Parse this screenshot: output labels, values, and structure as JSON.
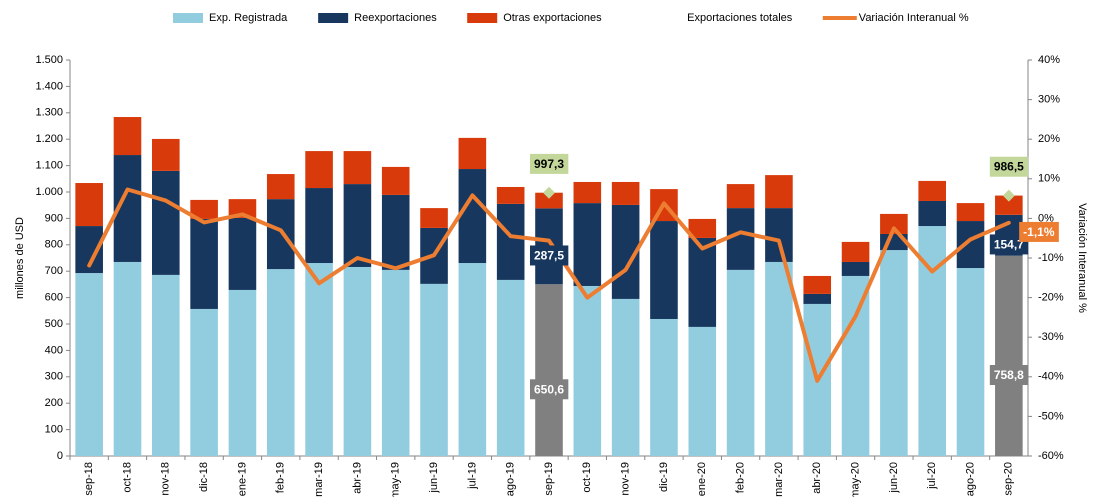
{
  "chart_data": {
    "type": "bar",
    "stacked": true,
    "y_label": "millones de USD",
    "y2_label": "Variación Interanual %",
    "categories": [
      "sep-18",
      "oct-18",
      "nov-18",
      "dic-18",
      "ene-19",
      "feb-19",
      "mar-19",
      "abr-19",
      "may-19",
      "jun-19",
      "jul-19",
      "ago-19",
      "sep-19",
      "oct-19",
      "nov-19",
      "dic-19",
      "ene-20",
      "feb-20",
      "mar-20",
      "abr-20",
      "may-20",
      "jun-20",
      "jul-20",
      "ago-20",
      "sep-20"
    ],
    "series": [
      {
        "name": "Exp. Registrada",
        "type": "bar",
        "color": "#92cddf",
        "colors": [
          "#92cddf",
          "#92cddf",
          "#92cddf",
          "#92cddf",
          "#92cddf",
          "#92cddf",
          "#92cddf",
          "#92cddf",
          "#92cddf",
          "#92cddf",
          "#92cddf",
          "#92cddf",
          "#808080",
          "#92cddf",
          "#92cddf",
          "#92cddf",
          "#92cddf",
          "#92cddf",
          "#92cddf",
          "#92cddf",
          "#92cddf",
          "#92cddf",
          "#92cddf",
          "#92cddf",
          "#808080"
        ],
        "values": [
          693,
          735,
          686,
          557,
          629,
          708,
          731,
          716,
          705,
          652,
          731,
          667,
          650.6,
          644,
          595,
          519,
          489,
          705,
          735,
          576,
          682,
          780,
          871,
          712,
          758.8
        ],
        "value_labels": [
          null,
          null,
          null,
          null,
          null,
          null,
          null,
          null,
          null,
          null,
          null,
          null,
          "650,6",
          null,
          null,
          null,
          null,
          null,
          null,
          null,
          null,
          null,
          null,
          null,
          "758,8"
        ],
        "label_box": "#808080",
        "label_text": "#ffffff"
      },
      {
        "name": "Reexportaciones",
        "type": "bar",
        "color": "#17375e",
        "values": [
          178,
          405,
          394,
          341,
          273,
          265,
          284,
          314,
          284,
          212,
          356,
          288,
          287.5,
          314,
          356,
          371,
          337,
          234,
          204,
          38,
          53,
          61,
          95,
          178,
          154.7
        ],
        "value_labels": [
          null,
          null,
          null,
          null,
          null,
          null,
          null,
          null,
          null,
          null,
          null,
          null,
          "287,5",
          null,
          null,
          null,
          null,
          null,
          null,
          null,
          null,
          null,
          null,
          null,
          "154,7"
        ],
        "label_box": "#17375e",
        "label_text": "#ffffff"
      },
      {
        "name": "Otras exportaciones",
        "type": "bar",
        "color": "#d83a0b",
        "values": [
          163,
          144,
          121,
          72,
          71,
          95,
          140,
          125,
          106,
          75,
          118,
          64,
          59.2,
          80,
          87,
          121,
          72,
          91,
          125,
          68,
          76,
          76,
          76,
          68,
          73
        ]
      },
      {
        "name": "Exportaciones  totales",
        "type": "marker",
        "color": "#c4d79b",
        "values": [
          null,
          null,
          null,
          null,
          null,
          null,
          null,
          null,
          null,
          null,
          null,
          null,
          997.3,
          null,
          null,
          null,
          null,
          null,
          null,
          null,
          null,
          null,
          null,
          null,
          986.5
        ],
        "value_labels": [
          null,
          null,
          null,
          null,
          null,
          null,
          null,
          null,
          null,
          null,
          null,
          null,
          "997,3",
          null,
          null,
          null,
          null,
          null,
          null,
          null,
          null,
          null,
          null,
          null,
          "986,5"
        ],
        "label_box": "#c4d79b",
        "label_text": "#000000"
      },
      {
        "name": "Variación Interanual %",
        "type": "line",
        "axis": "y2",
        "color": "#ed7d31",
        "values": [
          -11.9,
          7.3,
          4.5,
          -1,
          1,
          -3,
          -16.4,
          -10,
          -12.6,
          -9.3,
          5.8,
          -4.5,
          -5.6,
          -20,
          -13,
          3.8,
          -7.6,
          -3.5,
          -5.6,
          -41,
          -24.7,
          -2.5,
          -13.4,
          -5.3,
          -1.1
        ],
        "value_labels": [
          null,
          null,
          null,
          null,
          null,
          null,
          null,
          null,
          null,
          null,
          null,
          null,
          null,
          null,
          null,
          null,
          null,
          null,
          null,
          null,
          null,
          null,
          null,
          null,
          "-1,1%"
        ],
        "label_box": "#ed7d31",
        "label_text": "#ffffff"
      }
    ],
    "ylim": [
      0,
      1500
    ],
    "yticks": [
      0,
      100,
      200,
      300,
      400,
      500,
      600,
      700,
      800,
      900,
      {
        "value": 1000,
        "label": "1.000"
      },
      {
        "value": 1100,
        "label": "1.100"
      },
      {
        "value": 1200,
        "label": "1.200"
      },
      {
        "value": 1300,
        "label": "1.300"
      },
      {
        "value": 1400,
        "label": "1.400"
      },
      {
        "value": 1500,
        "label": "1.500"
      }
    ],
    "y2lim": [
      -60,
      40
    ],
    "y2ticks": [
      {
        "value": -60,
        "label": "-60%"
      },
      {
        "value": -50,
        "label": "-50%"
      },
      {
        "value": -40,
        "label": "-40%"
      },
      {
        "value": -30,
        "label": "-30%"
      },
      {
        "value": -20,
        "label": "-20%"
      },
      {
        "value": -10,
        "label": "-10%"
      },
      {
        "value": 0,
        "label": "0%"
      },
      {
        "value": 10,
        "label": "10%"
      },
      {
        "value": 20,
        "label": "20%"
      },
      {
        "value": 30,
        "label": "30%"
      },
      {
        "value": 40,
        "label": "40%"
      }
    ],
    "grid": false,
    "legend": "top"
  }
}
